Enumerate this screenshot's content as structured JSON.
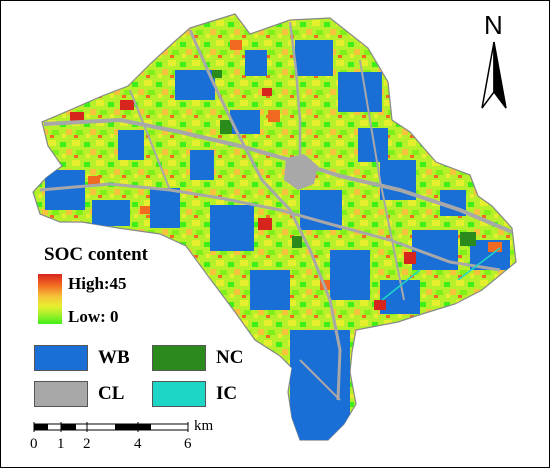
{
  "legend": {
    "title": "SOC content",
    "high_label": "High:45",
    "low_label": "Low: 0",
    "classes": [
      {
        "code": "WB",
        "color": "#1a6fd6"
      },
      {
        "code": "NC",
        "color": "#2a8a1c"
      },
      {
        "code": "CL",
        "color": "#a8a8a8"
      },
      {
        "code": "IC",
        "color": "#1ed6c6"
      }
    ]
  },
  "scale": {
    "ticks": [
      "0",
      "1",
      "2",
      "4",
      "6"
    ],
    "unit": "km"
  },
  "north_arrow": {
    "label": "N",
    "icon": "north-arrow-icon"
  },
  "colors": {
    "water": "#1a6fd6",
    "road": "#a8a8a8",
    "soc_low": "#3ef01a",
    "soc_mid": "#e6ef2e",
    "soc_high": "#d7241c"
  }
}
